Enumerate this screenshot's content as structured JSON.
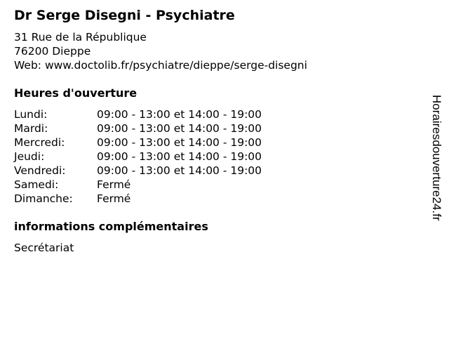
{
  "title": "Dr Serge Disegni - Psychiatre",
  "address": {
    "street": "31 Rue de la République",
    "city": "76200 Dieppe",
    "web": "Web: www.doctolib.fr/psychiatre/dieppe/serge-disegni"
  },
  "hours": {
    "heading": "Heures d'ouverture",
    "rows": [
      {
        "day": "Lundi:",
        "time": "09:00 - 13:00 et 14:00 - 19:00"
      },
      {
        "day": "Mardi:",
        "time": "09:00 - 13:00 et 14:00 - 19:00"
      },
      {
        "day": "Mercredi:",
        "time": "09:00 - 13:00 et 14:00 - 19:00"
      },
      {
        "day": "Jeudi:",
        "time": "09:00 - 13:00 et 14:00 - 19:00"
      },
      {
        "day": "Vendredi:",
        "time": "09:00 - 13:00 et 14:00 - 19:00"
      },
      {
        "day": "Samedi:",
        "time": "Fermé"
      },
      {
        "day": "Dimanche:",
        "time": "Fermé"
      }
    ]
  },
  "info": {
    "heading": "informations complémentaires",
    "text": "Secrétariat"
  },
  "watermark": "Horairesdouverture24.fr"
}
